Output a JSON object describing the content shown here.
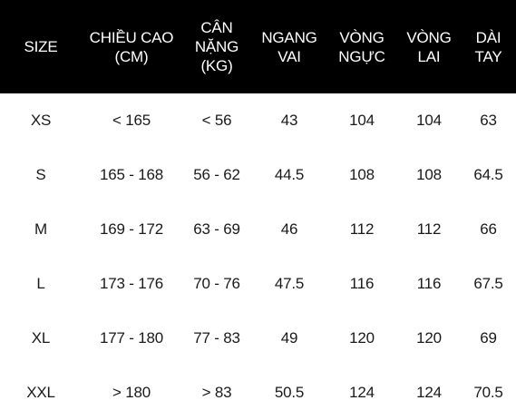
{
  "colors": {
    "header_bg": "#000000",
    "header_text": "#ffffff",
    "body_text": "#1a1a1a",
    "body_bg": "#ffffff"
  },
  "table": {
    "headers": [
      [
        "SIZE"
      ],
      [
        "CHIỀU CAO",
        "(CM)"
      ],
      [
        "CÂN",
        "NẶNG",
        "(KG)"
      ],
      [
        "NGANG",
        "VAI"
      ],
      [
        "VÒNG",
        "NGỰC"
      ],
      [
        "VÒNG",
        "LAI"
      ],
      [
        "DÀI",
        "TAY"
      ]
    ],
    "rows": [
      [
        "XS",
        "< 165",
        "< 56",
        "43",
        "104",
        "104",
        "63"
      ],
      [
        "S",
        "165 - 168",
        "56 - 62",
        "44.5",
        "108",
        "108",
        "64.5"
      ],
      [
        "M",
        "169 - 172",
        "63 - 69",
        "46",
        "112",
        "112",
        "66"
      ],
      [
        "L",
        "173 - 176",
        "70 - 76",
        "47.5",
        "116",
        "116",
        "67.5"
      ],
      [
        "XL",
        "177 - 180",
        "77 - 83",
        "49",
        "120",
        "120",
        "69"
      ],
      [
        "XXL",
        "> 180",
        "> 83",
        "50.5",
        "124",
        "124",
        "70.5"
      ]
    ]
  }
}
